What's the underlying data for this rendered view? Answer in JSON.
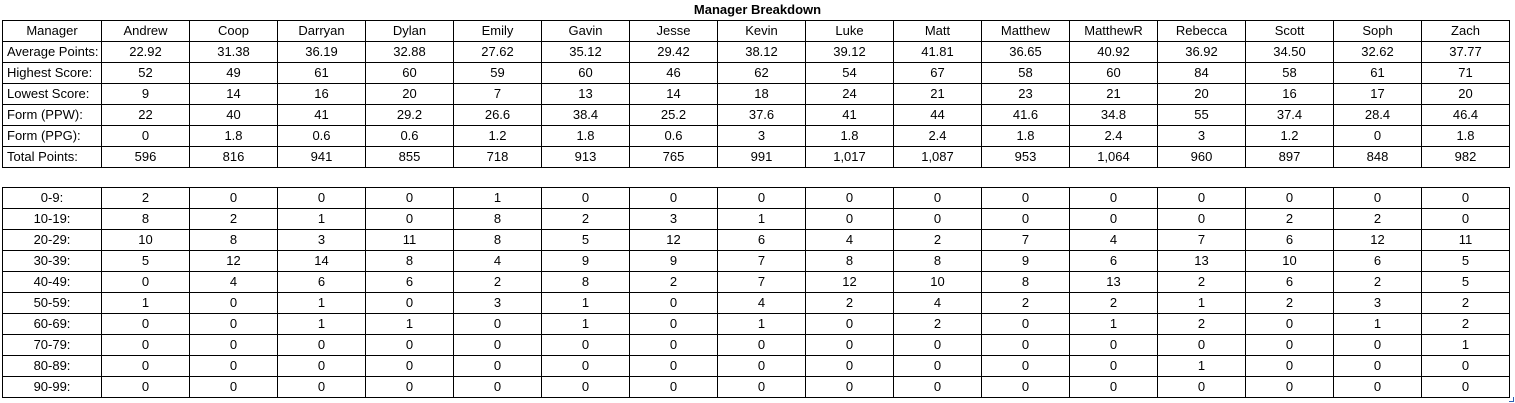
{
  "title": "Manager Breakdown",
  "summary": {
    "corner_label": "Manager",
    "managers": [
      "Andrew",
      "Coop",
      "Darryan",
      "Dylan",
      "Emily",
      "Gavin",
      "Jesse",
      "Kevin",
      "Luke",
      "Matt",
      "Matthew",
      "MatthewR",
      "Rebecca",
      "Scott",
      "Soph",
      "Zach"
    ],
    "rows": [
      {
        "label": "Average Points:",
        "values": [
          "22.92",
          "31.38",
          "36.19",
          "32.88",
          "27.62",
          "35.12",
          "29.42",
          "38.12",
          "39.12",
          "41.81",
          "36.65",
          "40.92",
          "36.92",
          "34.50",
          "32.62",
          "37.77"
        ]
      },
      {
        "label": "Highest Score:",
        "values": [
          "52",
          "49",
          "61",
          "60",
          "59",
          "60",
          "46",
          "62",
          "54",
          "67",
          "58",
          "60",
          "84",
          "58",
          "61",
          "71"
        ]
      },
      {
        "label": "Lowest Score:",
        "values": [
          "9",
          "14",
          "16",
          "20",
          "7",
          "13",
          "14",
          "18",
          "24",
          "21",
          "23",
          "21",
          "20",
          "16",
          "17",
          "20"
        ]
      },
      {
        "label": "Form (PPW):",
        "values": [
          "22",
          "40",
          "41",
          "29.2",
          "26.6",
          "38.4",
          "25.2",
          "37.6",
          "41",
          "44",
          "41.6",
          "34.8",
          "55",
          "37.4",
          "28.4",
          "46.4"
        ]
      },
      {
        "label": "Form (PPG):",
        "values": [
          "0",
          "1.8",
          "0.6",
          "0.6",
          "1.2",
          "1.8",
          "0.6",
          "3",
          "1.8",
          "2.4",
          "1.8",
          "2.4",
          "3",
          "1.2",
          "0",
          "1.8"
        ]
      },
      {
        "label": "Total Points:",
        "values": [
          "596",
          "816",
          "941",
          "855",
          "718",
          "913",
          "765",
          "991",
          "1,017",
          "1,087",
          "953",
          "1,064",
          "960",
          "897",
          "848",
          "982"
        ]
      }
    ]
  },
  "distribution": {
    "rows": [
      {
        "label": "0-9:",
        "values": [
          "2",
          "0",
          "0",
          "0",
          "1",
          "0",
          "0",
          "0",
          "0",
          "0",
          "0",
          "0",
          "0",
          "0",
          "0",
          "0"
        ]
      },
      {
        "label": "10-19:",
        "values": [
          "8",
          "2",
          "1",
          "0",
          "8",
          "2",
          "3",
          "1",
          "0",
          "0",
          "0",
          "0",
          "0",
          "2",
          "2",
          "0"
        ]
      },
      {
        "label": "20-29:",
        "values": [
          "10",
          "8",
          "3",
          "11",
          "8",
          "5",
          "12",
          "6",
          "4",
          "2",
          "7",
          "4",
          "7",
          "6",
          "12",
          "11"
        ]
      },
      {
        "label": "30-39:",
        "values": [
          "5",
          "12",
          "14",
          "8",
          "4",
          "9",
          "9",
          "7",
          "8",
          "8",
          "9",
          "6",
          "13",
          "10",
          "6",
          "5"
        ]
      },
      {
        "label": "40-49:",
        "values": [
          "0",
          "4",
          "6",
          "6",
          "2",
          "8",
          "2",
          "7",
          "12",
          "10",
          "8",
          "13",
          "2",
          "6",
          "2",
          "5"
        ]
      },
      {
        "label": "50-59:",
        "values": [
          "1",
          "0",
          "1",
          "0",
          "3",
          "1",
          "0",
          "4",
          "2",
          "4",
          "2",
          "2",
          "1",
          "2",
          "3",
          "2"
        ]
      },
      {
        "label": "60-69:",
        "values": [
          "0",
          "0",
          "1",
          "1",
          "0",
          "1",
          "0",
          "1",
          "0",
          "2",
          "0",
          "1",
          "2",
          "0",
          "1",
          "2"
        ]
      },
      {
        "label": "70-79:",
        "values": [
          "0",
          "0",
          "0",
          "0",
          "0",
          "0",
          "0",
          "0",
          "0",
          "0",
          "0",
          "0",
          "0",
          "0",
          "0",
          "1"
        ]
      },
      {
        "label": "80-89:",
        "values": [
          "0",
          "0",
          "0",
          "0",
          "0",
          "0",
          "0",
          "0",
          "0",
          "0",
          "0",
          "0",
          "1",
          "0",
          "0",
          "0"
        ]
      },
      {
        "label": "90-99:",
        "values": [
          "0",
          "0",
          "0",
          "0",
          "0",
          "0",
          "0",
          "0",
          "0",
          "0",
          "0",
          "0",
          "0",
          "0",
          "0",
          "0"
        ]
      }
    ]
  }
}
